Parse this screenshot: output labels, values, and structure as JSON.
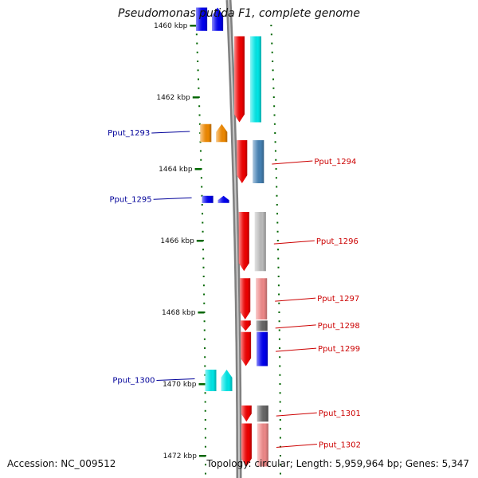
{
  "title": "Pseudomonas putida F1, complete genome",
  "footer": {
    "accession": "Accession: NC_009512",
    "summary": "Topology: circular; Length: 5,959,964 bp; Genes: 5,347"
  },
  "colors": {
    "backbone": "#808080",
    "forward_label": "#cc0000",
    "reverse_label": "#000099",
    "tick": "#006600"
  },
  "scale_ticks": [
    {
      "kbp": 1460,
      "label": "1460 kbp"
    },
    {
      "kbp": 1462,
      "label": "1462 kbp"
    },
    {
      "kbp": 1464,
      "label": "1464 kbp"
    },
    {
      "kbp": 1466,
      "label": "1466 kbp"
    },
    {
      "kbp": 1468,
      "label": "1468 kbp"
    },
    {
      "kbp": 1470,
      "label": "1470 kbp"
    },
    {
      "kbp": 1472,
      "label": "1472 kbp"
    }
  ],
  "genes": [
    {
      "strand": "forward",
      "start_kbp": 1460.3,
      "end_kbp": 1462.7,
      "cog_color": "#00e5e5",
      "label": ""
    },
    {
      "strand": "reverse",
      "start_kbp": 1459.5,
      "end_kbp": 1460.15,
      "cog_color": "#0000ee",
      "label": ""
    },
    {
      "strand": "reverse",
      "start_kbp": 1462.75,
      "end_kbp": 1463.25,
      "cog_color": "#ee8800",
      "label": "Pput_1293"
    },
    {
      "strand": "forward",
      "start_kbp": 1463.2,
      "end_kbp": 1464.4,
      "cog_color": "#4682b4",
      "label": "Pput_1294"
    },
    {
      "strand": "reverse",
      "start_kbp": 1464.75,
      "end_kbp": 1464.95,
      "cog_color": "#0000ee",
      "label": "Pput_1295"
    },
    {
      "strand": "forward",
      "start_kbp": 1465.2,
      "end_kbp": 1466.85,
      "cog_color": "#bbbbbb",
      "label": "Pput_1296"
    },
    {
      "strand": "forward",
      "start_kbp": 1467.05,
      "end_kbp": 1468.2,
      "cog_color": "#ee8888",
      "label": "Pput_1297"
    },
    {
      "strand": "forward",
      "start_kbp": 1468.23,
      "end_kbp": 1468.52,
      "cog_color": "#666666",
      "label": "Pput_1298"
    },
    {
      "strand": "forward",
      "start_kbp": 1468.55,
      "end_kbp": 1469.5,
      "cog_color": "#0000ee",
      "label": "Pput_1299"
    },
    {
      "strand": "reverse",
      "start_kbp": 1469.6,
      "end_kbp": 1470.2,
      "cog_color": "#00e5e5",
      "label": "Pput_1300"
    },
    {
      "strand": "forward",
      "start_kbp": 1470.6,
      "end_kbp": 1471.05,
      "cog_color": "#666666",
      "label": "Pput_1301"
    },
    {
      "strand": "forward",
      "start_kbp": 1471.1,
      "end_kbp": 1472.3,
      "cog_color": "#ee8888",
      "label": "Pput_1302"
    }
  ]
}
